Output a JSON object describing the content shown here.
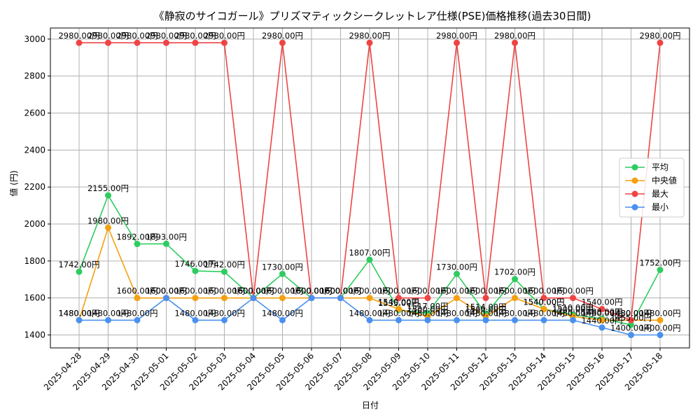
{
  "chart_data": {
    "type": "line",
    "title": "《静寂のサイコガール》プリズマティックシークレットレア仕様(PSE)価格推移(過去30日間)",
    "xlabel": "日付",
    "ylabel": "値 (円)",
    "ylim": [
      1330,
      3060
    ],
    "yticks": [
      "1400",
      "1600",
      "1800",
      "2000",
      "2200",
      "2400",
      "2600",
      "2800",
      "3000"
    ],
    "grid": true,
    "legend_position": "center-right",
    "label_suffix": "円",
    "categories": [
      "2025-04-28",
      "2025-04-29",
      "2025-04-30",
      "2025-05-01",
      "2025-05-02",
      "2025-05-03",
      "2025-05-04",
      "2025-05-05",
      "2025-05-06",
      "2025-05-07",
      "2025-05-08",
      "2025-05-09",
      "2025-05-10",
      "2025-05-11",
      "2025-05-12",
      "2025-05-13",
      "2025-05-14",
      "2025-05-15",
      "2025-05-16",
      "2025-05-17",
      "2025-05-18"
    ],
    "series": [
      {
        "name": "平均",
        "color": "#2ecc5f",
        "values": [
          1742,
          2155,
          1892,
          1893,
          1746,
          1742,
          1600,
          1730,
          1600,
          1600,
          1807,
          1535,
          1517,
          1730,
          1514,
          1702,
          1540,
          1510,
          1488,
          1455,
          1752
        ],
        "labels": [
          "1742.00円",
          "2155.00円",
          "1892.00円",
          "1893.00円",
          "1746.00円",
          "1742.00円",
          "1600.00円",
          "1730.00円",
          "1600.00円",
          "1600.00円",
          "1807.00円",
          "1535.00円",
          "1517.00円",
          "1730.00円",
          "1514.00円",
          "1702.00円",
          "1540.00円",
          "1510.00円",
          "1488.00円",
          "1455.00円",
          "1752.00円"
        ]
      },
      {
        "name": "中央値",
        "color": "#f5a00f",
        "values": [
          1480,
          1980,
          1600,
          1600,
          1600,
          1600,
          1600,
          1600,
          1600,
          1600,
          1600,
          1540,
          1500,
          1600,
          1500,
          1600,
          1540,
          1500,
          1480,
          1480,
          1480
        ],
        "labels": [
          "1480.00円",
          "1980.00円",
          "1600.00円",
          "1600.00円",
          "1600.00円",
          "1600.00円",
          "1600.00円",
          "1600.00円",
          "1600.00円",
          "1600.00円",
          "1600.00円",
          "1540.00円",
          "1500.00円",
          "1600.00円",
          "1500.00円",
          "1600.00円",
          "1540.00円",
          "1500.00円",
          "1480.00円",
          "1480.00円",
          "1480.00円"
        ]
      },
      {
        "name": "最大",
        "color": "#ef4444",
        "values": [
          2980,
          2980,
          2980,
          2980,
          2980,
          2980,
          1600,
          2980,
          1600,
          1600,
          2980,
          1600,
          1600,
          2980,
          1600,
          2980,
          1600,
          1600,
          1540,
          1480,
          2980
        ],
        "labels": [
          "2980.00円",
          "2980.00円",
          "2980.00円",
          "2980.00円",
          "2980.00円",
          "2980.00円",
          "1600.00円",
          "2980.00円",
          "1600.00円",
          "1600.00円",
          "2980.00円",
          "1600.00円",
          "1600.00円",
          "2980.00円",
          "1600.00円",
          "2980.00円",
          "1600.00円",
          "1600.00円",
          "1540.00円",
          "1480.00円",
          "2980.00円"
        ]
      },
      {
        "name": "最小",
        "color": "#4a90f0",
        "values": [
          1480,
          1480,
          1480,
          1600,
          1480,
          1480,
          1600,
          1480,
          1600,
          1600,
          1480,
          1480,
          1480,
          1480,
          1480,
          1480,
          1480,
          1480,
          1440,
          1400,
          1400
        ],
        "labels": [
          "1480.00円",
          "1480.00円",
          "1480.00円",
          "1600.00円",
          "1480.00円",
          "1480.00円",
          "1600.00円",
          "1480.00円",
          "1600.00円",
          "1600.00円",
          "1480.00円",
          "1480.00円",
          "1480.00円",
          "1480.00円",
          "1480.00円",
          "1480.00円",
          "1480.00円",
          "1480.00円",
          "1440.00円",
          "1400.00円",
          "1400.00円"
        ]
      }
    ]
  }
}
